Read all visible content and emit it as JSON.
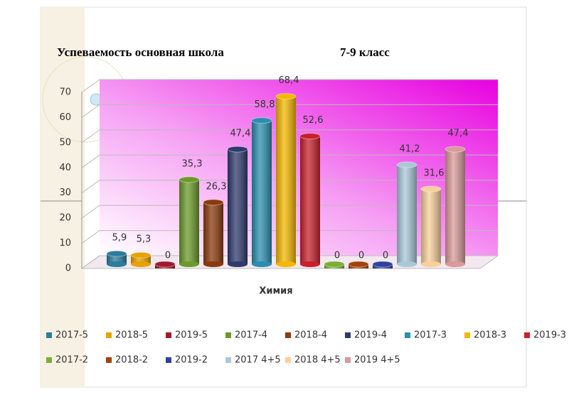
{
  "chart_data": {
    "type": "bar",
    "title": "Успеваемость основная школа",
    "subtitle": "7-9 класс",
    "categories": [
      "Химия"
    ],
    "ylim": [
      0,
      70
    ],
    "yticks": [
      0,
      10,
      20,
      30,
      40,
      50,
      60,
      70
    ],
    "grid": true,
    "series": [
      {
        "name": "2017-5",
        "color": "#2b7d9c",
        "values": [
          5.9
        ],
        "value_labels": [
          "5,9"
        ]
      },
      {
        "name": "2018-5",
        "color": "#e8a200",
        "values": [
          5.3
        ],
        "value_labels": [
          "5,3"
        ]
      },
      {
        "name": "2019-5",
        "color": "#a3182b",
        "values": [
          0
        ]
      },
      {
        "name": "2017-4",
        "color": "#6b9a2a",
        "values": [
          35.3
        ],
        "value_labels": [
          "35,3"
        ]
      },
      {
        "name": "2018-4",
        "color": "#8a3a0c",
        "values": [
          26.3
        ],
        "value_labels": [
          "26,3"
        ]
      },
      {
        "name": "2019-4",
        "color": "#2f3b6e",
        "values": [
          47.4
        ],
        "value_labels": [
          "47,4"
        ]
      },
      {
        "name": "2017-3",
        "color": "#2a8fb0",
        "values": [
          58.8
        ],
        "value_labels": [
          "58,8"
        ]
      },
      {
        "name": "2018-3",
        "color": "#f5b800",
        "values": [
          68.4
        ],
        "value_labels": [
          "68,4"
        ]
      },
      {
        "name": "2019-3",
        "color": "#c8202c",
        "values": [
          52.6
        ],
        "value_labels": [
          "52,6"
        ]
      },
      {
        "name": "2017-2",
        "color": "#7ab032",
        "values": [
          0
        ]
      },
      {
        "name": "2018-2",
        "color": "#a3420c",
        "values": [
          0
        ]
      },
      {
        "name": "2019-2",
        "color": "#30409e",
        "values": [
          0
        ]
      },
      {
        "name": "2017 4+5",
        "color": "#a8c8d8",
        "values": [
          41.2
        ],
        "value_labels": [
          "41,2"
        ]
      },
      {
        "name": "2018 4+5",
        "color": "#f8d09a",
        "values": [
          31.6
        ],
        "value_labels": [
          "31,6"
        ]
      },
      {
        "name": "2019 4+5",
        "color": "#d89a9a",
        "values": [
          47.4
        ],
        "value_labels": [
          "47,4"
        ]
      }
    ]
  }
}
